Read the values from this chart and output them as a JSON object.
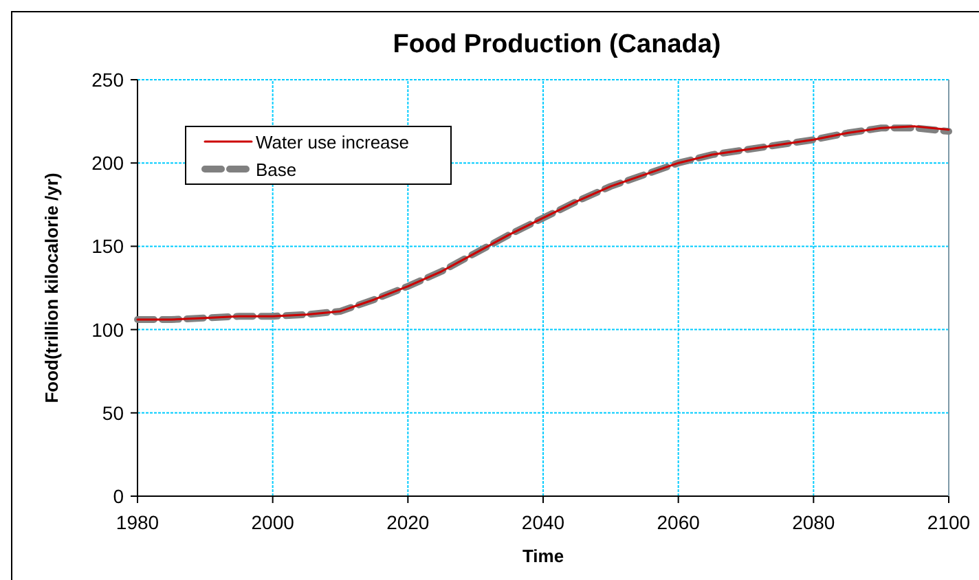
{
  "chart_data": {
    "type": "line",
    "title": "Food Production (Canada)",
    "xlabel": "Time",
    "ylabel": "Food(trillion kilocalorie /yr)",
    "x": [
      1980,
      1985,
      1990,
      1995,
      2000,
      2005,
      2010,
      2015,
      2020,
      2025,
      2030,
      2035,
      2040,
      2045,
      2050,
      2055,
      2060,
      2065,
      2070,
      2075,
      2080,
      2085,
      2090,
      2095,
      2100
    ],
    "series": [
      {
        "name": "Water use increase",
        "color": "#cc0000",
        "line_style": "solid",
        "values": [
          106,
          106,
          107,
          108,
          108,
          109,
          111,
          118,
          126,
          135,
          146,
          157,
          167,
          177,
          186,
          193,
          200,
          205,
          208,
          211,
          214,
          218,
          221,
          222,
          220
        ]
      },
      {
        "name": "Base",
        "color": "#808080",
        "line_style": "dashed",
        "values": [
          106,
          106,
          107,
          108,
          108,
          109,
          111,
          118,
          126,
          135,
          146,
          157,
          167,
          177,
          186,
          193,
          200,
          205,
          208,
          211,
          214,
          218,
          221,
          221,
          219
        ]
      }
    ],
    "xlim": [
      1980,
      2100
    ],
    "xticks": [
      1980,
      2000,
      2020,
      2040,
      2060,
      2080,
      2100
    ],
    "ylim": [
      0,
      250
    ],
    "yticks": [
      0,
      50,
      100,
      150,
      200,
      250
    ],
    "grid": true,
    "legend": "top left",
    "marker": "none"
  }
}
